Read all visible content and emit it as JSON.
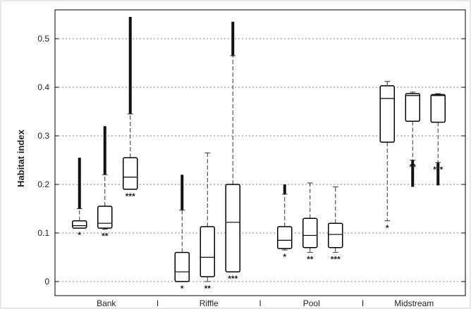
{
  "chart_data": {
    "type": "box",
    "title": "",
    "xlabel": "",
    "ylabel": "Habitat index",
    "ylim": [
      -0.03,
      0.56
    ],
    "yticks": [
      0,
      0.1,
      0.2,
      0.3,
      0.4,
      0.5
    ],
    "ytick_labels": [
      "0",
      "0.1",
      "0.2",
      "0.3",
      "0.4",
      "0.5"
    ],
    "grid": "horizontal-dashed",
    "group_separator": "I",
    "groups": [
      {
        "label": "Bank",
        "boxes": [
          {
            "sig": "*",
            "min": 0.11,
            "q1": 0.11,
            "median": 0.115,
            "q3": 0.125,
            "whisker_high": 0.15,
            "outliers_from": 0.15,
            "outliers_to": 0.255
          },
          {
            "sig": "**",
            "min": 0.108,
            "q1": 0.11,
            "median": 0.12,
            "q3": 0.155,
            "whisker_high": 0.22,
            "outliers_from": 0.22,
            "outliers_to": 0.32
          },
          {
            "sig": "***",
            "min": 0.19,
            "q1": 0.19,
            "median": 0.215,
            "q3": 0.255,
            "whisker_high": 0.345,
            "outliers_from": 0.345,
            "outliers_to": 0.545
          }
        ]
      },
      {
        "label": "Riffle",
        "boxes": [
          {
            "sig": "*",
            "min": 0.0,
            "q1": 0.0,
            "median": 0.02,
            "q3": 0.06,
            "whisker_high": 0.147,
            "outliers_from": 0.147,
            "outliers_to": 0.22
          },
          {
            "sig": "**",
            "min": 0.0,
            "q1": 0.01,
            "median": 0.05,
            "q3": 0.113,
            "whisker_high": 0.265,
            "outliers_from": null,
            "outliers_to": null
          },
          {
            "sig": "***",
            "min": 0.02,
            "q1": 0.02,
            "median": 0.122,
            "q3": 0.2,
            "whisker_high": 0.465,
            "outliers_from": 0.465,
            "outliers_to": 0.535
          }
        ]
      },
      {
        "label": "Pool",
        "boxes": [
          {
            "sig": "*",
            "min": 0.065,
            "q1": 0.068,
            "median": 0.085,
            "q3": 0.113,
            "whisker_high": 0.18,
            "outliers_from": 0.18,
            "outliers_to": 0.2
          },
          {
            "sig": "**",
            "min": 0.06,
            "q1": 0.07,
            "median": 0.095,
            "q3": 0.13,
            "whisker_high": 0.203,
            "outliers_from": null,
            "outliers_to": null
          },
          {
            "sig": "***",
            "min": 0.06,
            "q1": 0.07,
            "median": 0.097,
            "q3": 0.12,
            "whisker_high": 0.195,
            "outliers_from": null,
            "outliers_to": null
          }
        ]
      },
      {
        "label": "Midstream",
        "boxes": [
          {
            "sig": "*",
            "min": 0.125,
            "q1": 0.287,
            "median": 0.377,
            "q3": 0.403,
            "whisker_high": 0.412,
            "outliers_from": null,
            "outliers_to": null
          },
          {
            "sig": "**",
            "min": 0.25,
            "q1": 0.33,
            "median": 0.383,
            "q3": 0.387,
            "whisker_high": 0.39,
            "outliers_from": 0.195,
            "outliers_to": 0.25
          },
          {
            "sig": "***",
            "min": 0.245,
            "q1": 0.328,
            "median": 0.383,
            "q3": 0.385,
            "whisker_high": 0.387,
            "outliers_from": 0.198,
            "outliers_to": 0.245
          }
        ]
      }
    ]
  }
}
